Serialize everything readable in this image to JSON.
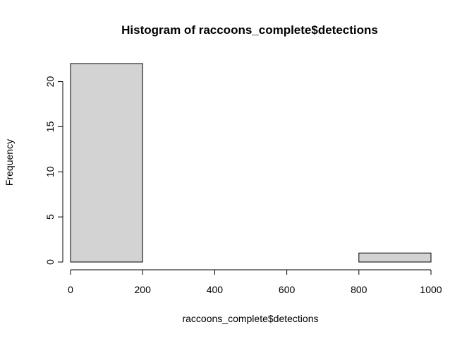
{
  "chart_data": {
    "type": "bar",
    "title": "Histogram of raccoons_complete$detections",
    "xlabel": "raccoons_complete$detections",
    "ylabel": "Frequency",
    "bins": [
      {
        "start": 0,
        "end": 200,
        "count": 22
      },
      {
        "start": 200,
        "end": 400,
        "count": 0
      },
      {
        "start": 400,
        "end": 600,
        "count": 0
      },
      {
        "start": 600,
        "end": 800,
        "count": 0
      },
      {
        "start": 800,
        "end": 1000,
        "count": 1
      }
    ],
    "xlim": [
      0,
      1000
    ],
    "ylim": [
      0,
      22
    ],
    "x_ticks": [
      "0",
      "200",
      "400",
      "600",
      "800",
      "1000"
    ],
    "y_ticks": [
      "0",
      "5",
      "10",
      "15",
      "20"
    ],
    "bar_fill": "#d3d3d3",
    "bar_stroke": "#000000",
    "grid": false,
    "legend": "none"
  }
}
